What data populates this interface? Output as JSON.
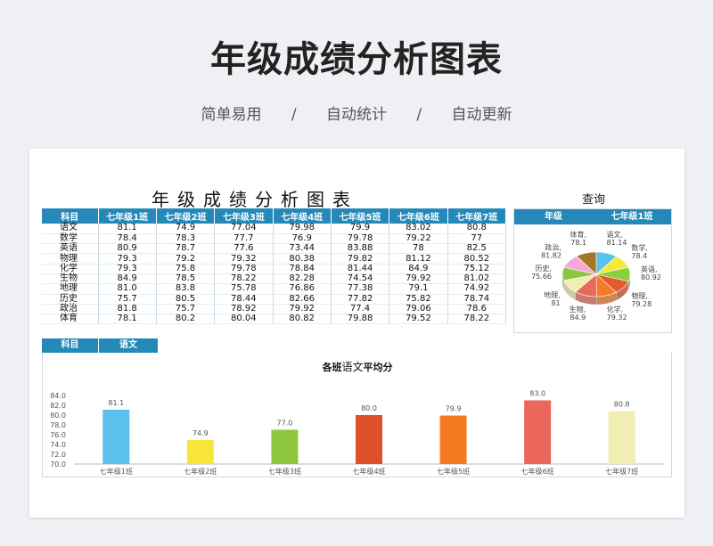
{
  "hero": {
    "title": "年级成绩分析图表",
    "tags": [
      "简单易用",
      "/",
      "自动统计",
      "/",
      "自动更新"
    ]
  },
  "sheet": {
    "title": "年级成绩分析图表",
    "query_label": "查询"
  },
  "table": {
    "headers": [
      "科目",
      "七年级1班",
      "七年级2班",
      "七年级3班",
      "七年级4班",
      "七年级5班",
      "七年级6班",
      "七年级7班"
    ],
    "rows": [
      [
        "语文",
        "81.1",
        "74.9",
        "77.04",
        "79.98",
        "79.9",
        "83.02",
        "80.8"
      ],
      [
        "数学",
        "78.4",
        "78.3",
        "77.7",
        "76.9",
        "79.78",
        "79.22",
        "77"
      ],
      [
        "英语",
        "80.9",
        "78.7",
        "77.6",
        "73.44",
        "83.88",
        "78",
        "82.5"
      ],
      [
        "物理",
        "79.3",
        "79.2",
        "79.32",
        "80.38",
        "79.82",
        "81.12",
        "80.52"
      ],
      [
        "化学",
        "79.3",
        "75.8",
        "79.78",
        "78.84",
        "81.44",
        "84.9",
        "75.12"
      ],
      [
        "生物",
        "84.9",
        "78.5",
        "78.22",
        "82.28",
        "74.54",
        "79.92",
        "81.02"
      ],
      [
        "地理",
        "81.0",
        "83.8",
        "75.78",
        "76.86",
        "77.38",
        "79.1",
        "74.92"
      ],
      [
        "历史",
        "75.7",
        "80.5",
        "78.44",
        "82.66",
        "77.82",
        "75.82",
        "78.74"
      ],
      [
        "政治",
        "81.8",
        "75.7",
        "78.92",
        "79.92",
        "77.4",
        "79.06",
        "78.6"
      ],
      [
        "体育",
        "78.1",
        "80.2",
        "80.04",
        "80.82",
        "79.88",
        "79.52",
        "78.22"
      ]
    ]
  },
  "pie_query": {
    "key": "年级",
    "value": "七年级1班"
  },
  "bar_query": {
    "key": "科目",
    "value": "语文"
  },
  "colors": {
    "header": "#2488b8",
    "pie": [
      "#5bc0eb",
      "#f5e83a",
      "#8ccf3d",
      "#e45a2c",
      "#f47c26",
      "#e96a5d",
      "#f1eeb0",
      "#8dc63f",
      "#f7a8d8",
      "#a07828"
    ],
    "bars": [
      "#5bc0eb",
      "#f7e53b",
      "#8cc63f",
      "#e0502b",
      "#f47a22",
      "#eb665b",
      "#f1eeb4"
    ]
  },
  "chart_data": [
    {
      "type": "pie",
      "title": "",
      "labels": [
        "语文",
        "数学",
        "英语",
        "物理",
        "化学",
        "生物",
        "地理",
        "历史",
        "政治",
        "体育"
      ],
      "values": [
        81.14,
        78.4,
        80.92,
        79.28,
        79.32,
        84.9,
        81,
        75.66,
        81.82,
        78.1
      ],
      "value_labels": [
        "81.14",
        "78.4",
        "80.92",
        "79.28",
        "79.32",
        "84.9",
        "81",
        "75.66",
        "81.82",
        "78.1"
      ]
    },
    {
      "type": "bar",
      "title_parts": [
        "各班",
        "语文",
        "平均分"
      ],
      "categories": [
        "七年级1班",
        "七年级2班",
        "七年级3班",
        "七年级4班",
        "七年级5班",
        "七年级6班",
        "七年级7班"
      ],
      "values": [
        81.1,
        74.9,
        77.0,
        80.0,
        79.9,
        83.0,
        80.8
      ],
      "value_labels": [
        "81.1",
        "74.9",
        "77.0",
        "80.0",
        "79.9",
        "83.0",
        "80.8"
      ],
      "yticks": [
        "84.0",
        "82.0",
        "80.0",
        "78.0",
        "76.0",
        "74.0",
        "72.0",
        "70.0"
      ],
      "ylim": [
        70,
        84
      ],
      "grid": false
    }
  ]
}
